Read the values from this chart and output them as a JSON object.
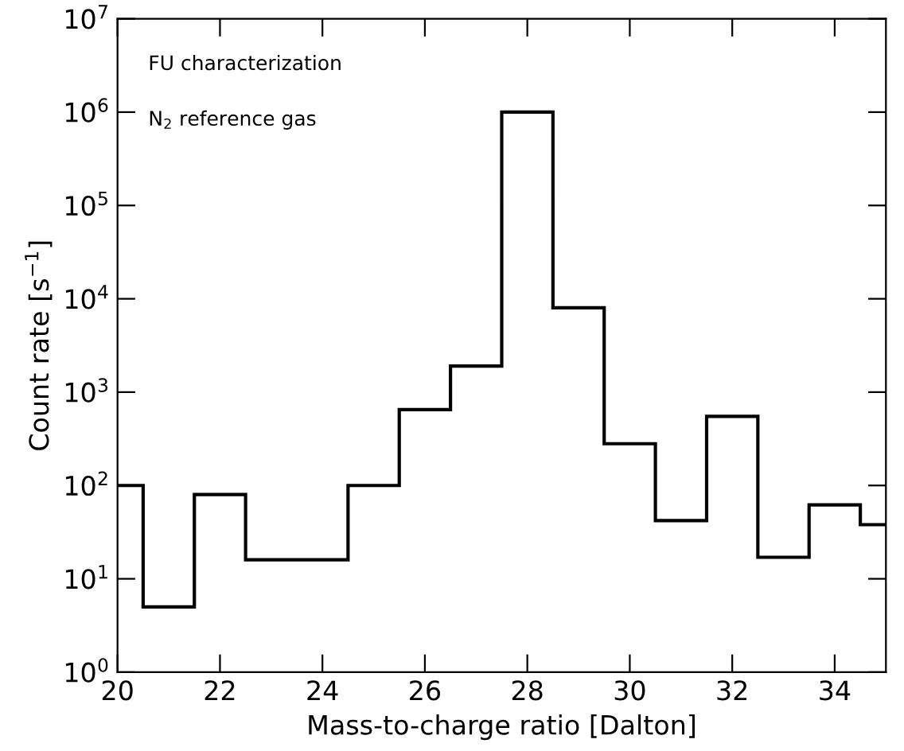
{
  "chart_data": {
    "type": "histogram",
    "xlabel": "Mass-to-charge ratio [Dalton]",
    "ylabel": "Count rate [s$^{−1}$]",
    "annotations": [
      "FU characterization",
      "N$_{2}$ reference gas"
    ],
    "bins": [
      20,
      20.5,
      21.5,
      22.5,
      23.5,
      24.5,
      25.5,
      26.5,
      27.5,
      28.5,
      29.5,
      30.5,
      31.5,
      32.5,
      33.5,
      34.5,
      35
    ],
    "values": [
      100,
      5,
      80,
      16,
      16,
      100,
      650,
      1900,
      1000000,
      8000,
      280,
      42,
      550,
      17,
      62,
      38
    ],
    "color": "#000000",
    "log": "y",
    "xlim": [
      20,
      35
    ],
    "xticks": [
      20,
      22,
      24,
      26,
      28,
      30,
      32,
      34
    ],
    "ylim": [
      1,
      10000000
    ],
    "yticks": [
      {
        "value": 1,
        "label": "10$^{0}$"
      },
      {
        "value": 10,
        "label": "10$^{1}$"
      },
      {
        "value": 100,
        "label": "10$^{2}$"
      },
      {
        "value": 1000,
        "label": "10$^{3}$"
      },
      {
        "value": 10000,
        "label": "10$^{4}$"
      },
      {
        "value": 100000,
        "label": "10$^{5}$"
      },
      {
        "value": 1000000,
        "label": "10$^{6}$"
      },
      {
        "value": 10000000,
        "label": "10$^{7}$"
      }
    ],
    "grid": false
  }
}
